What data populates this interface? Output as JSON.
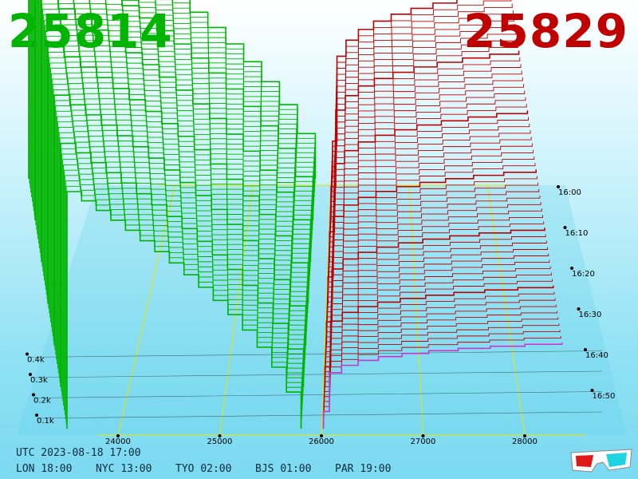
{
  "header": {
    "bid_price": "25814",
    "ask_price": "25829",
    "bid_color": "#00b400",
    "ask_color": "#c00000"
  },
  "timestamp": "UTC 2023-08-18 17:00",
  "world_clocks": [
    {
      "city": "LON",
      "time": "18:00"
    },
    {
      "city": "NYC",
      "time": "13:00"
    },
    {
      "city": "TYO",
      "time": "02:00"
    },
    {
      "city": "BJS",
      "time": "01:00"
    },
    {
      "city": "PAR",
      "time": "19:00"
    }
  ],
  "glasses_icon": "3d-glasses-icon",
  "chart_data": {
    "type": "area",
    "title": "",
    "x_ticks": [
      "24000",
      "25000",
      "26000",
      "27000",
      "28000"
    ],
    "z_ticks": [
      "0.1k",
      "0.2k",
      "0.3k",
      "0.4k"
    ],
    "time_ticks": [
      "16:00",
      "16:10",
      "16:20",
      "16:30",
      "16:40",
      "16:50"
    ],
    "series": [
      {
        "side": "bid",
        "color": "#00b400",
        "best_price": 25814
      },
      {
        "side": "ask",
        "color": "#c00000",
        "best_price": 25829
      }
    ],
    "grid_color": "#e6e600",
    "latest_line_color": "#cc33cc"
  }
}
